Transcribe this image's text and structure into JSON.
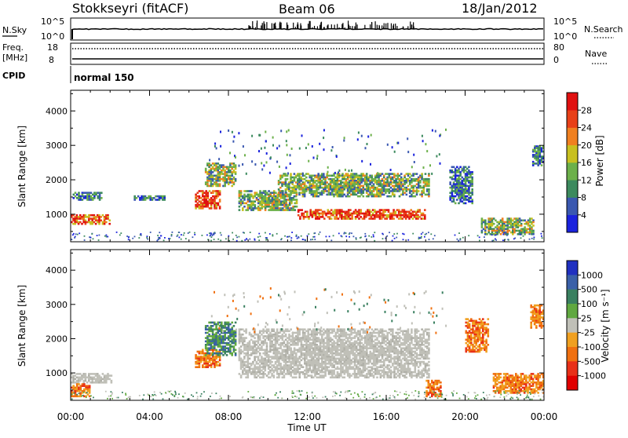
{
  "header": {
    "site": "Stokkseyri (fitACF)",
    "beam": "Beam 06",
    "date": "18/Jan/2012"
  },
  "nsky_panel": {
    "left_label": "N.Sky",
    "right_label": "N.Search",
    "left_ticks": [
      "10^5",
      "10^0"
    ],
    "right_ticks": [
      "10^5",
      "10^0"
    ]
  },
  "freq_panel": {
    "left_label_top": "Freq.",
    "left_label_unit": "[MHz]",
    "right_label": "Nave",
    "left_ticks": [
      "18",
      "8"
    ],
    "right_ticks": [
      "80",
      "0"
    ]
  },
  "cpid": {
    "label": "CPID",
    "value": "normal 150"
  },
  "time_axis": {
    "label": "Time UT",
    "ticks": [
      "00:00",
      "04:00",
      "08:00",
      "12:00",
      "16:00",
      "20:00",
      "00:00"
    ]
  },
  "chart_data": [
    {
      "type": "heatmap",
      "panel": "power",
      "ylabel": "Slant Range [km]",
      "yticks": [
        "1000",
        "2000",
        "3000",
        "4000"
      ],
      "ylim": [
        200,
        4600
      ],
      "xlim": [
        0,
        24
      ],
      "colorbar": {
        "label": "Power [dB]",
        "ticks": [
          "4",
          "8",
          "12",
          "16",
          "20",
          "24",
          "28"
        ],
        "colors": [
          "#1a22dd",
          "#3a58b0",
          "#3c8a5e",
          "#6cb04a",
          "#c8c020",
          "#f08020",
          "#e84018",
          "#e01010"
        ]
      },
      "regions": [
        {
          "t": [
            0.0,
            2.1
          ],
          "r": [
            700,
            1000
          ],
          "level": "high"
        },
        {
          "t": [
            0.1,
            1.6
          ],
          "r": [
            1400,
            1650
          ],
          "level": "low"
        },
        {
          "t": [
            3.2,
            4.8
          ],
          "r": [
            1400,
            1550
          ],
          "level": "low"
        },
        {
          "t": [
            6.3,
            7.6
          ],
          "r": [
            1150,
            1700
          ],
          "level": "high"
        },
        {
          "t": [
            6.8,
            8.4
          ],
          "r": [
            1800,
            2500
          ],
          "level": "mid"
        },
        {
          "t": [
            8.5,
            11.5
          ],
          "r": [
            1100,
            1700
          ],
          "level": "mid"
        },
        {
          "t": [
            10.5,
            18.2
          ],
          "r": [
            1500,
            2200
          ],
          "level": "mid"
        },
        {
          "t": [
            11.5,
            18.0
          ],
          "r": [
            850,
            1150
          ],
          "level": "high"
        },
        {
          "t": [
            19.2,
            20.4
          ],
          "r": [
            1300,
            2400
          ],
          "level": "low"
        },
        {
          "t": [
            20.8,
            23.5
          ],
          "r": [
            400,
            900
          ],
          "level": "mid"
        },
        {
          "t": [
            23.4,
            24.0
          ],
          "r": [
            2400,
            3000
          ],
          "level": "low"
        }
      ]
    },
    {
      "type": "heatmap",
      "panel": "velocity",
      "ylabel": "Slant Range [km]",
      "yticks": [
        "1000",
        "2000",
        "3000",
        "4000"
      ],
      "ylim": [
        200,
        4600
      ],
      "xlim": [
        0,
        24
      ],
      "colorbar": {
        "label": "Velocity [m s⁻¹]",
        "ticks": [
          "1000",
          "500",
          "100",
          "25",
          "-25",
          "-100",
          "-500",
          "-1000"
        ],
        "colors": [
          "#2030c0",
          "#3a60a8",
          "#3a8060",
          "#60a840",
          "#c0c0b8",
          "#f0a020",
          "#f07010",
          "#e83018",
          "#e00000"
        ]
      },
      "regions": [
        {
          "t": [
            0.0,
            2.1
          ],
          "r": [
            700,
            1000
          ],
          "level": "ground"
        },
        {
          "t": [
            0.0,
            1.0
          ],
          "r": [
            300,
            700
          ],
          "level": "neg"
        },
        {
          "t": [
            6.3,
            7.6
          ],
          "r": [
            1150,
            1700
          ],
          "level": "neg"
        },
        {
          "t": [
            6.8,
            8.4
          ],
          "r": [
            1500,
            2500
          ],
          "level": "pos"
        },
        {
          "t": [
            8.5,
            18.2
          ],
          "r": [
            850,
            2300
          ],
          "level": "ground"
        },
        {
          "t": [
            18.0,
            18.8
          ],
          "r": [
            300,
            800
          ],
          "level": "neg"
        },
        {
          "t": [
            20.0,
            21.2
          ],
          "r": [
            1600,
            2600
          ],
          "level": "neg"
        },
        {
          "t": [
            21.4,
            24.0
          ],
          "r": [
            400,
            1000
          ],
          "level": "neg"
        },
        {
          "t": [
            23.3,
            24.0
          ],
          "r": [
            2300,
            3000
          ],
          "level": "neg"
        }
      ]
    }
  ]
}
